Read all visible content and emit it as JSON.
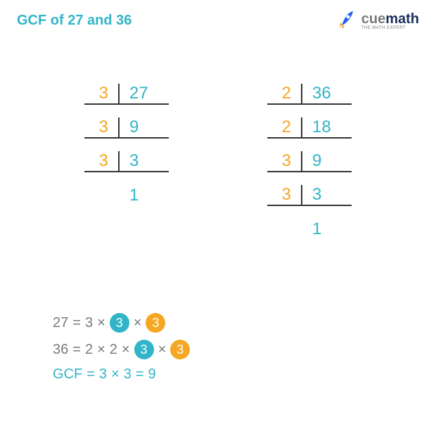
{
  "colors": {
    "teal": "#32b4c8",
    "gold": "#f5a623",
    "gray": "#7a7a7a",
    "navy": "#1b2e5c",
    "blue_rocket": "#2563eb",
    "border": "#333333"
  },
  "title": "GCF of 27 and 36",
  "logo": {
    "brand_prefix": "cue",
    "brand_suffix": "math",
    "prefix_color": "#7a7a7a",
    "suffix_color": "#1b2e5c",
    "tagline": "THE MATH EXPERT",
    "tagline_color": "#7a7a7a"
  },
  "table1": {
    "factor_color": "#f5a623",
    "value_color": "#32b4c8",
    "border_color": "#333333",
    "rows": [
      {
        "factor": "3",
        "value": "27",
        "underline": true
      },
      {
        "factor": "3",
        "value": "9",
        "underline": true
      },
      {
        "factor": "3",
        "value": "3",
        "underline": true
      },
      {
        "factor": "",
        "value": "1",
        "underline": false
      }
    ]
  },
  "table2": {
    "factor_color": "#f5a623",
    "value_color": "#32b4c8",
    "border_color": "#333333",
    "rows": [
      {
        "factor": "2",
        "value": "36",
        "underline": true
      },
      {
        "factor": "2",
        "value": "18",
        "underline": true
      },
      {
        "factor": "3",
        "value": "9",
        "underline": true
      },
      {
        "factor": "3",
        "value": "3",
        "underline": true
      },
      {
        "factor": "",
        "value": "1",
        "underline": false
      }
    ]
  },
  "equations": [
    {
      "color": "#7a7a7a",
      "terms": [
        {
          "text": "27",
          "kind": "plain"
        },
        {
          "text": "=",
          "kind": "plain"
        },
        {
          "text": "3",
          "kind": "plain"
        },
        {
          "text": "×",
          "kind": "plain"
        },
        {
          "text": "3",
          "kind": "circled",
          "bg": "#32b4c8"
        },
        {
          "text": "×",
          "kind": "plain"
        },
        {
          "text": "3",
          "kind": "circled",
          "bg": "#f5a623"
        }
      ]
    },
    {
      "color": "#7a7a7a",
      "terms": [
        {
          "text": "36",
          "kind": "plain"
        },
        {
          "text": "=",
          "kind": "plain"
        },
        {
          "text": "2",
          "kind": "plain"
        },
        {
          "text": "×",
          "kind": "plain"
        },
        {
          "text": "2",
          "kind": "plain"
        },
        {
          "text": "×",
          "kind": "plain"
        },
        {
          "text": "3",
          "kind": "circled",
          "bg": "#32b4c8"
        },
        {
          "text": "×",
          "kind": "plain"
        },
        {
          "text": "3",
          "kind": "circled",
          "bg": "#f5a623"
        }
      ]
    },
    {
      "color": "#32b4c8",
      "terms": [
        {
          "text": "GCF",
          "kind": "plain"
        },
        {
          "text": "=",
          "kind": "plain"
        },
        {
          "text": "3",
          "kind": "plain"
        },
        {
          "text": "×",
          "kind": "plain"
        },
        {
          "text": "3",
          "kind": "plain"
        },
        {
          "text": "=",
          "kind": "plain"
        },
        {
          "text": "9",
          "kind": "plain"
        }
      ]
    }
  ]
}
